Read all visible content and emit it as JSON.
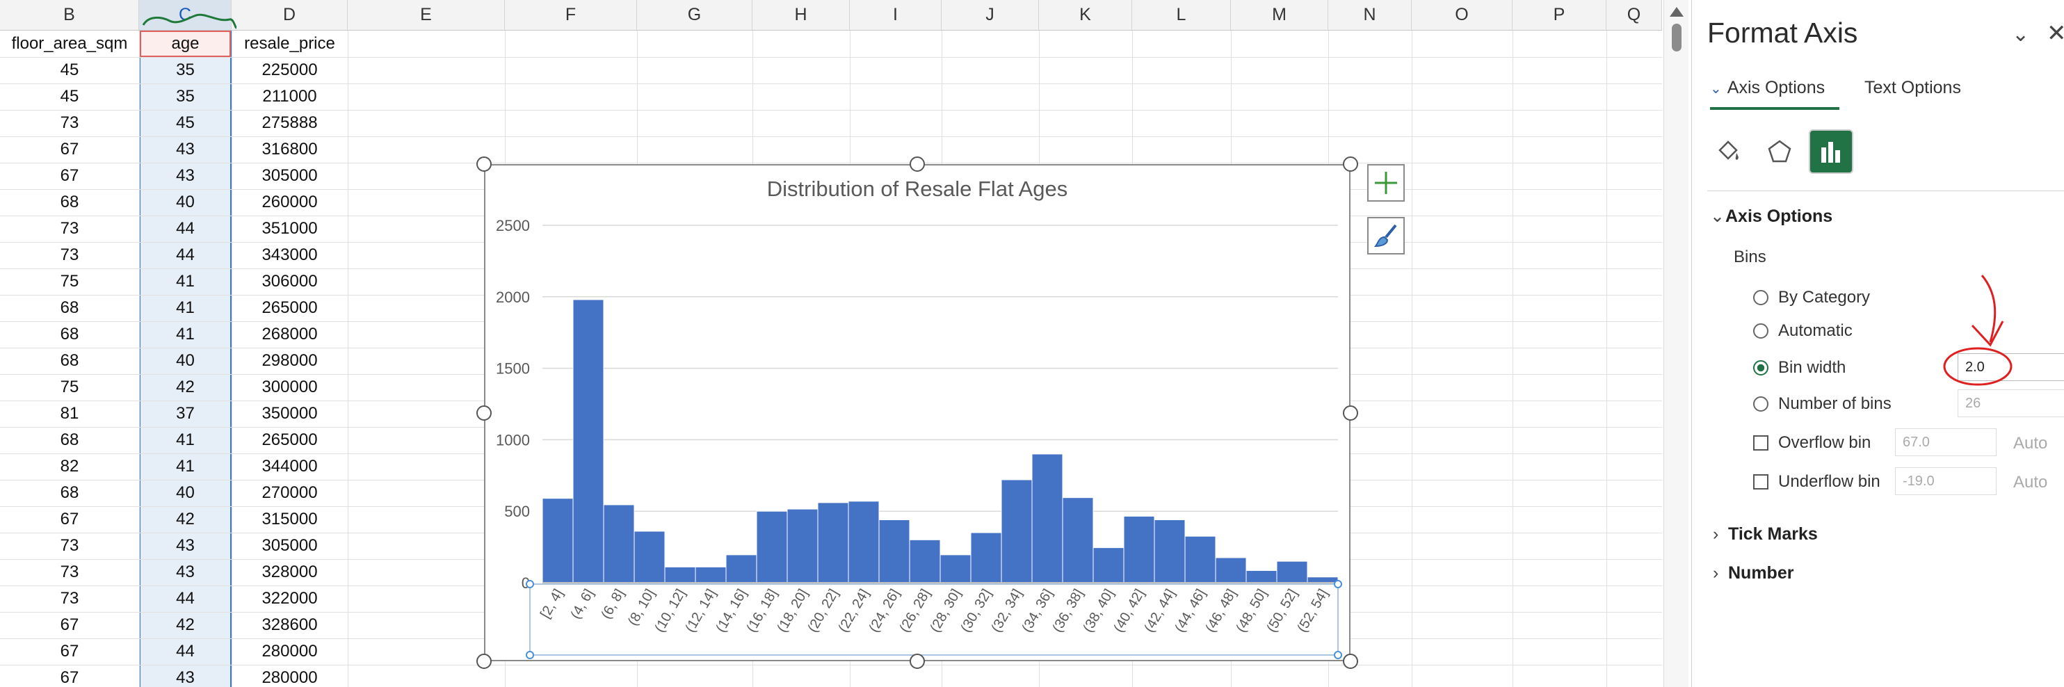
{
  "sheet": {
    "columns": [
      "B",
      "C",
      "D",
      "E",
      "F",
      "G",
      "H",
      "I",
      "J",
      "K",
      "L",
      "M",
      "N",
      "O",
      "P",
      "Q"
    ],
    "header_row": [
      "floor_area_sqm",
      "age",
      "resale_price"
    ],
    "rows": [
      [
        "45",
        "35",
        "225000"
      ],
      [
        "45",
        "35",
        "211000"
      ],
      [
        "73",
        "45",
        "275888"
      ],
      [
        "67",
        "43",
        "316800"
      ],
      [
        "67",
        "43",
        "305000"
      ],
      [
        "68",
        "40",
        "260000"
      ],
      [
        "73",
        "44",
        "351000"
      ],
      [
        "73",
        "44",
        "343000"
      ],
      [
        "75",
        "41",
        "306000"
      ],
      [
        "68",
        "41",
        "265000"
      ],
      [
        "68",
        "41",
        "268000"
      ],
      [
        "68",
        "40",
        "298000"
      ],
      [
        "75",
        "42",
        "300000"
      ],
      [
        "81",
        "37",
        "350000"
      ],
      [
        "68",
        "41",
        "265000"
      ],
      [
        "82",
        "41",
        "344000"
      ],
      [
        "68",
        "40",
        "270000"
      ],
      [
        "67",
        "42",
        "315000"
      ],
      [
        "73",
        "43",
        "305000"
      ],
      [
        "73",
        "43",
        "328000"
      ],
      [
        "73",
        "44",
        "322000"
      ],
      [
        "67",
        "42",
        "328600"
      ],
      [
        "67",
        "44",
        "280000"
      ],
      [
        "67",
        "43",
        "280000"
      ]
    ]
  },
  "chart_data": {
    "type": "bar",
    "title": "Distribution of Resale Flat Ages",
    "categories": [
      "[2, 4]",
      "(4, 6]",
      "(6, 8]",
      "(8, 10]",
      "(10, 12]",
      "(12, 14]",
      "(14, 16]",
      "(16, 18]",
      "(18, 20]",
      "(20, 22]",
      "(22, 24]",
      "(24, 26]",
      "(26, 28]",
      "(28, 30]",
      "(30, 32]",
      "(32, 34]",
      "(34, 36]",
      "(36, 38]",
      "(38, 40]",
      "(40, 42]",
      "(42, 44]",
      "(44, 46]",
      "(46, 48]",
      "(48, 50]",
      "(50, 52]",
      "(52, 54]"
    ],
    "values": [
      590,
      1980,
      545,
      360,
      110,
      110,
      195,
      500,
      515,
      560,
      570,
      440,
      300,
      195,
      350,
      720,
      900,
      595,
      245,
      465,
      440,
      325,
      175,
      85,
      150,
      40
    ],
    "ylim": [
      0,
      2500
    ],
    "yticks": [
      "0",
      "500",
      "1000",
      "1500",
      "2000",
      "2500"
    ],
    "bar_color": "#4472C4",
    "gridlines": true,
    "legend": "none"
  },
  "pane": {
    "title": "Format Axis",
    "tab_axis": "Axis Options",
    "tab_text": "Text Options",
    "section_axis": "Axis Options",
    "bins_label": "Bins",
    "opt_by_category": "By Category",
    "opt_automatic": "Automatic",
    "opt_bin_width": "Bin width",
    "bin_width_value": "2.0",
    "opt_number_bins": "Number of bins",
    "number_bins_value": "26",
    "overflow_label": "Overflow bin",
    "overflow_value": "67.0",
    "underflow_label": "Underflow bin",
    "underflow_value": "-19.0",
    "auto_label": "Auto",
    "section_tick": "Tick Marks",
    "section_number": "Number"
  },
  "colors": {
    "accent": "#217346",
    "selection": "#3c78c8",
    "annotation": "#e02020"
  }
}
